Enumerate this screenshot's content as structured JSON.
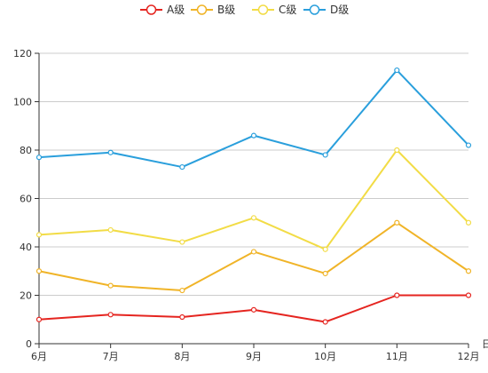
{
  "chart_data": {
    "type": "line",
    "title": "",
    "xlabel": "日",
    "ylabel": "",
    "categories": [
      "6月",
      "7月",
      "8月",
      "9月",
      "10月",
      "11月",
      "12月"
    ],
    "ylim": [
      0,
      120
    ],
    "yticks": [
      0,
      20,
      40,
      60,
      80,
      100,
      120
    ],
    "grid": true,
    "legend_position": "top-center",
    "series": [
      {
        "name": "A级",
        "color": "#e52520",
        "values": [
          10,
          12,
          11,
          14,
          9,
          20,
          20
        ]
      },
      {
        "name": "B级",
        "color": "#f0b428",
        "values": [
          30,
          24,
          22,
          38,
          29,
          50,
          30
        ]
      },
      {
        "name": "C级",
        "color": "#f2dc46",
        "values": [
          45,
          47,
          42,
          52,
          39,
          80,
          50
        ]
      },
      {
        "name": "D级",
        "color": "#2a9fdc",
        "values": [
          77,
          79,
          73,
          86,
          78,
          113,
          82
        ]
      }
    ]
  }
}
